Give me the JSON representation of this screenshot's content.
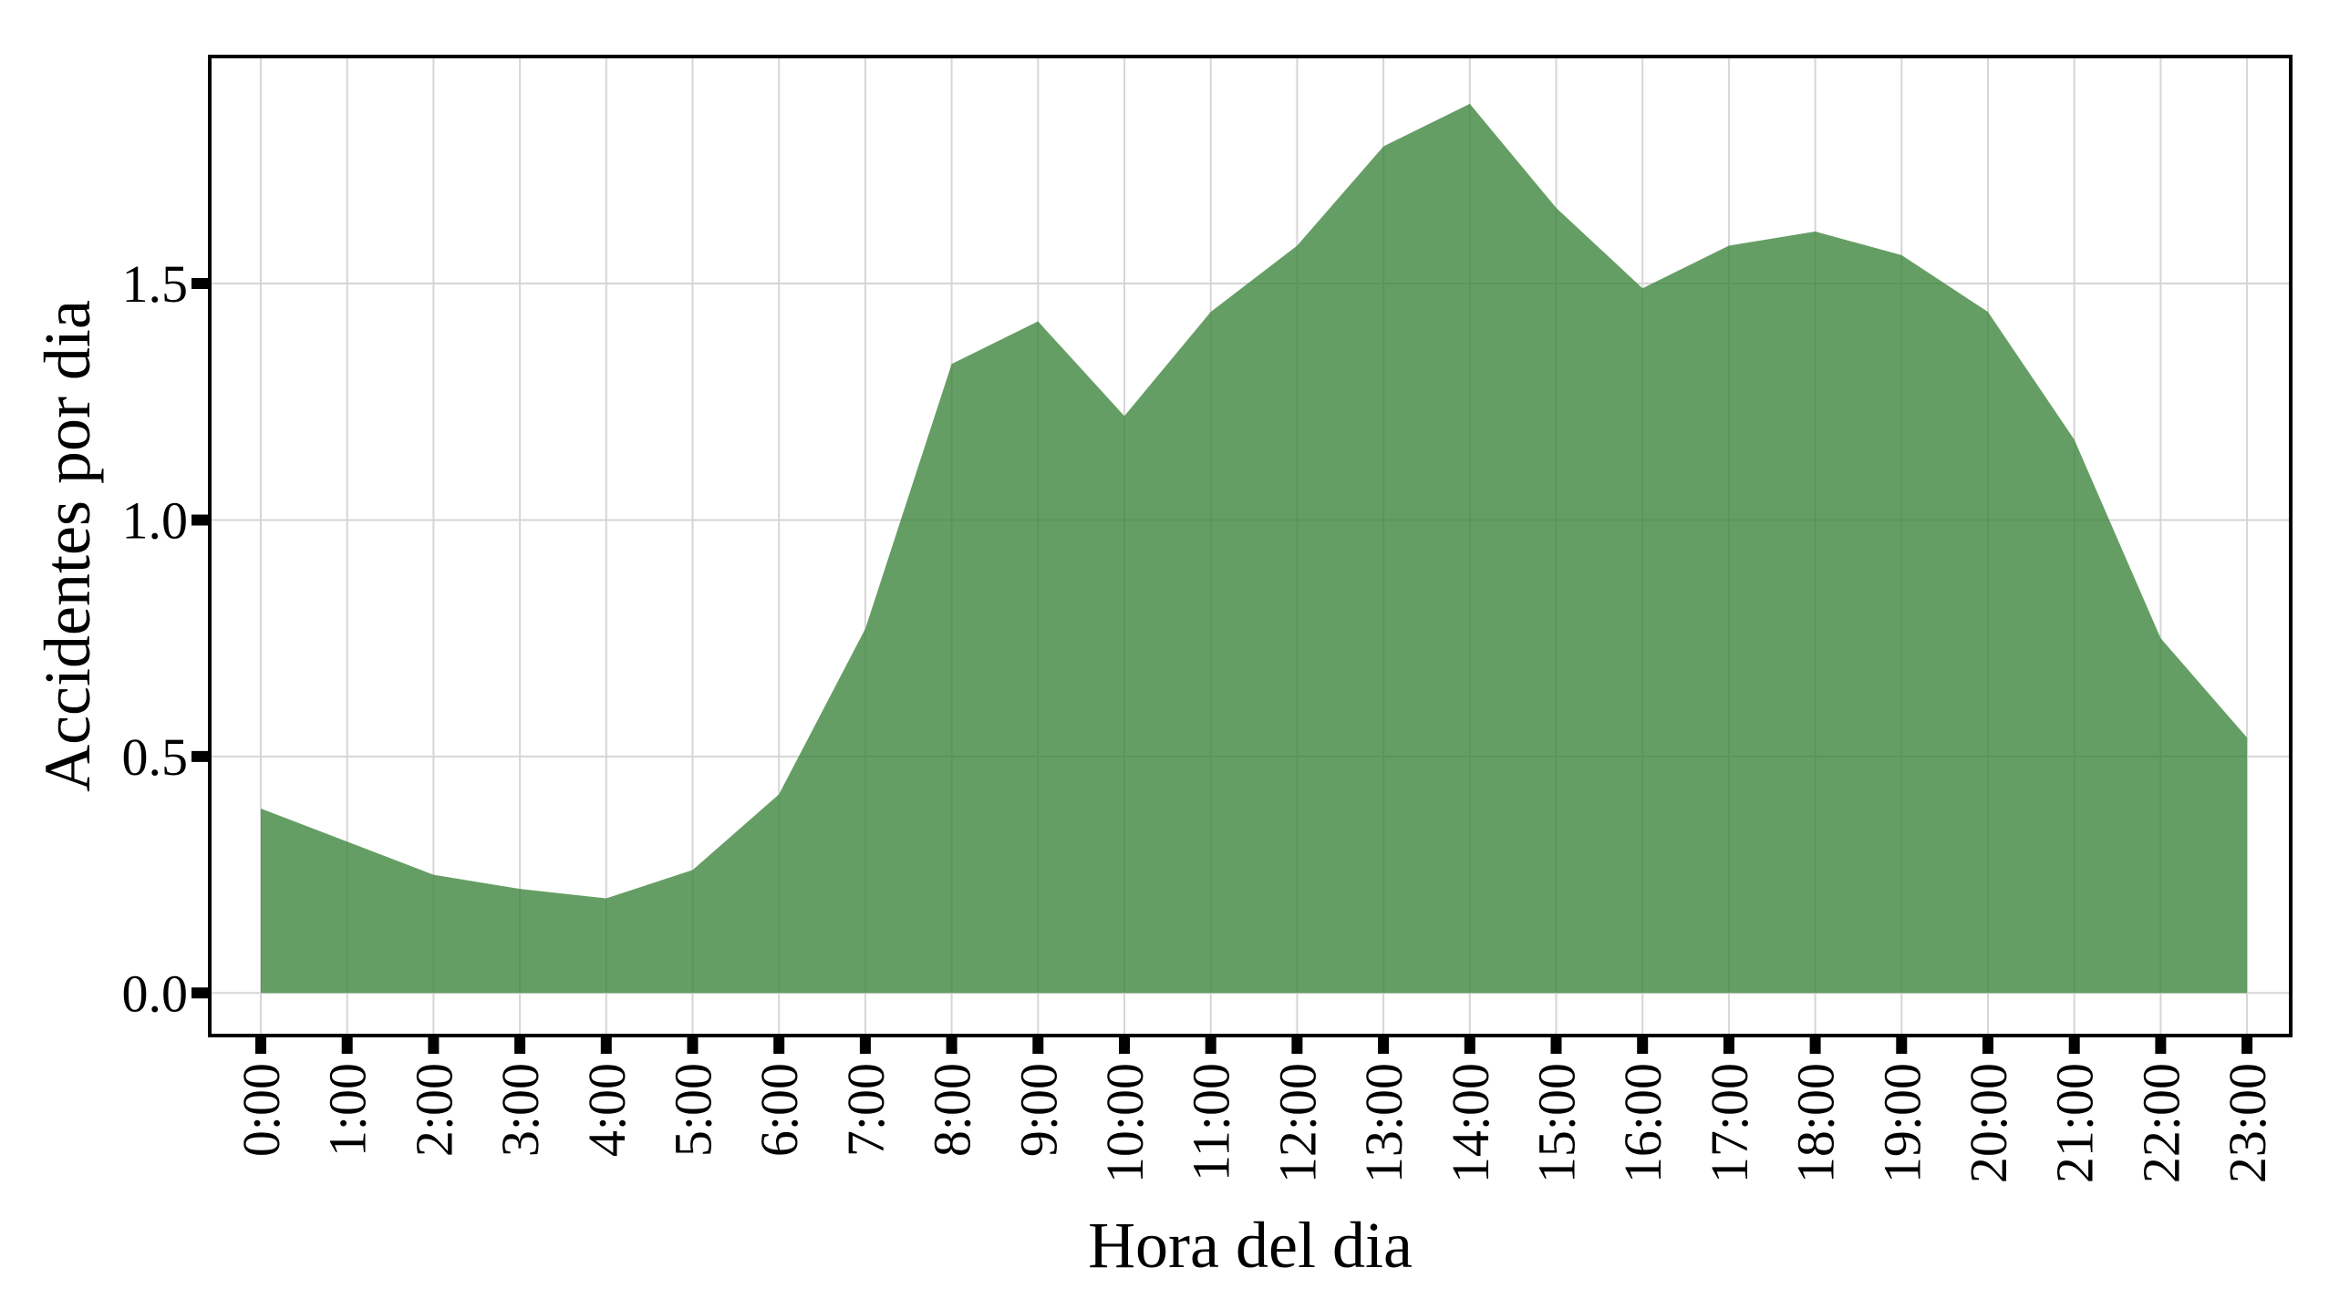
{
  "chart_data": {
    "type": "area",
    "xlabel": "Hora del dia",
    "ylabel": "Accidentes por dia",
    "categories": [
      "0:00",
      "1:00",
      "2:00",
      "3:00",
      "4:00",
      "5:00",
      "6:00",
      "7:00",
      "8:00",
      "9:00",
      "10:00",
      "11:00",
      "12:00",
      "13:00",
      "14:00",
      "15:00",
      "16:00",
      "17:00",
      "18:00",
      "19:00",
      "20:00",
      "21:00",
      "22:00",
      "23:00"
    ],
    "values": [
      0.39,
      0.32,
      0.25,
      0.22,
      0.2,
      0.26,
      0.42,
      0.77,
      1.33,
      1.42,
      1.22,
      1.44,
      1.58,
      1.79,
      1.88,
      1.66,
      1.49,
      1.58,
      1.61,
      1.56,
      1.44,
      1.17,
      0.75,
      0.54
    ],
    "ylim": [
      -0.09,
      1.98
    ],
    "yticks": [
      0.0,
      0.5,
      1.0,
      1.5
    ],
    "ytick_labels": [
      "0.0",
      "0.5",
      "1.0",
      "1.5"
    ],
    "grid": true,
    "fill_color": "#3a8338"
  }
}
